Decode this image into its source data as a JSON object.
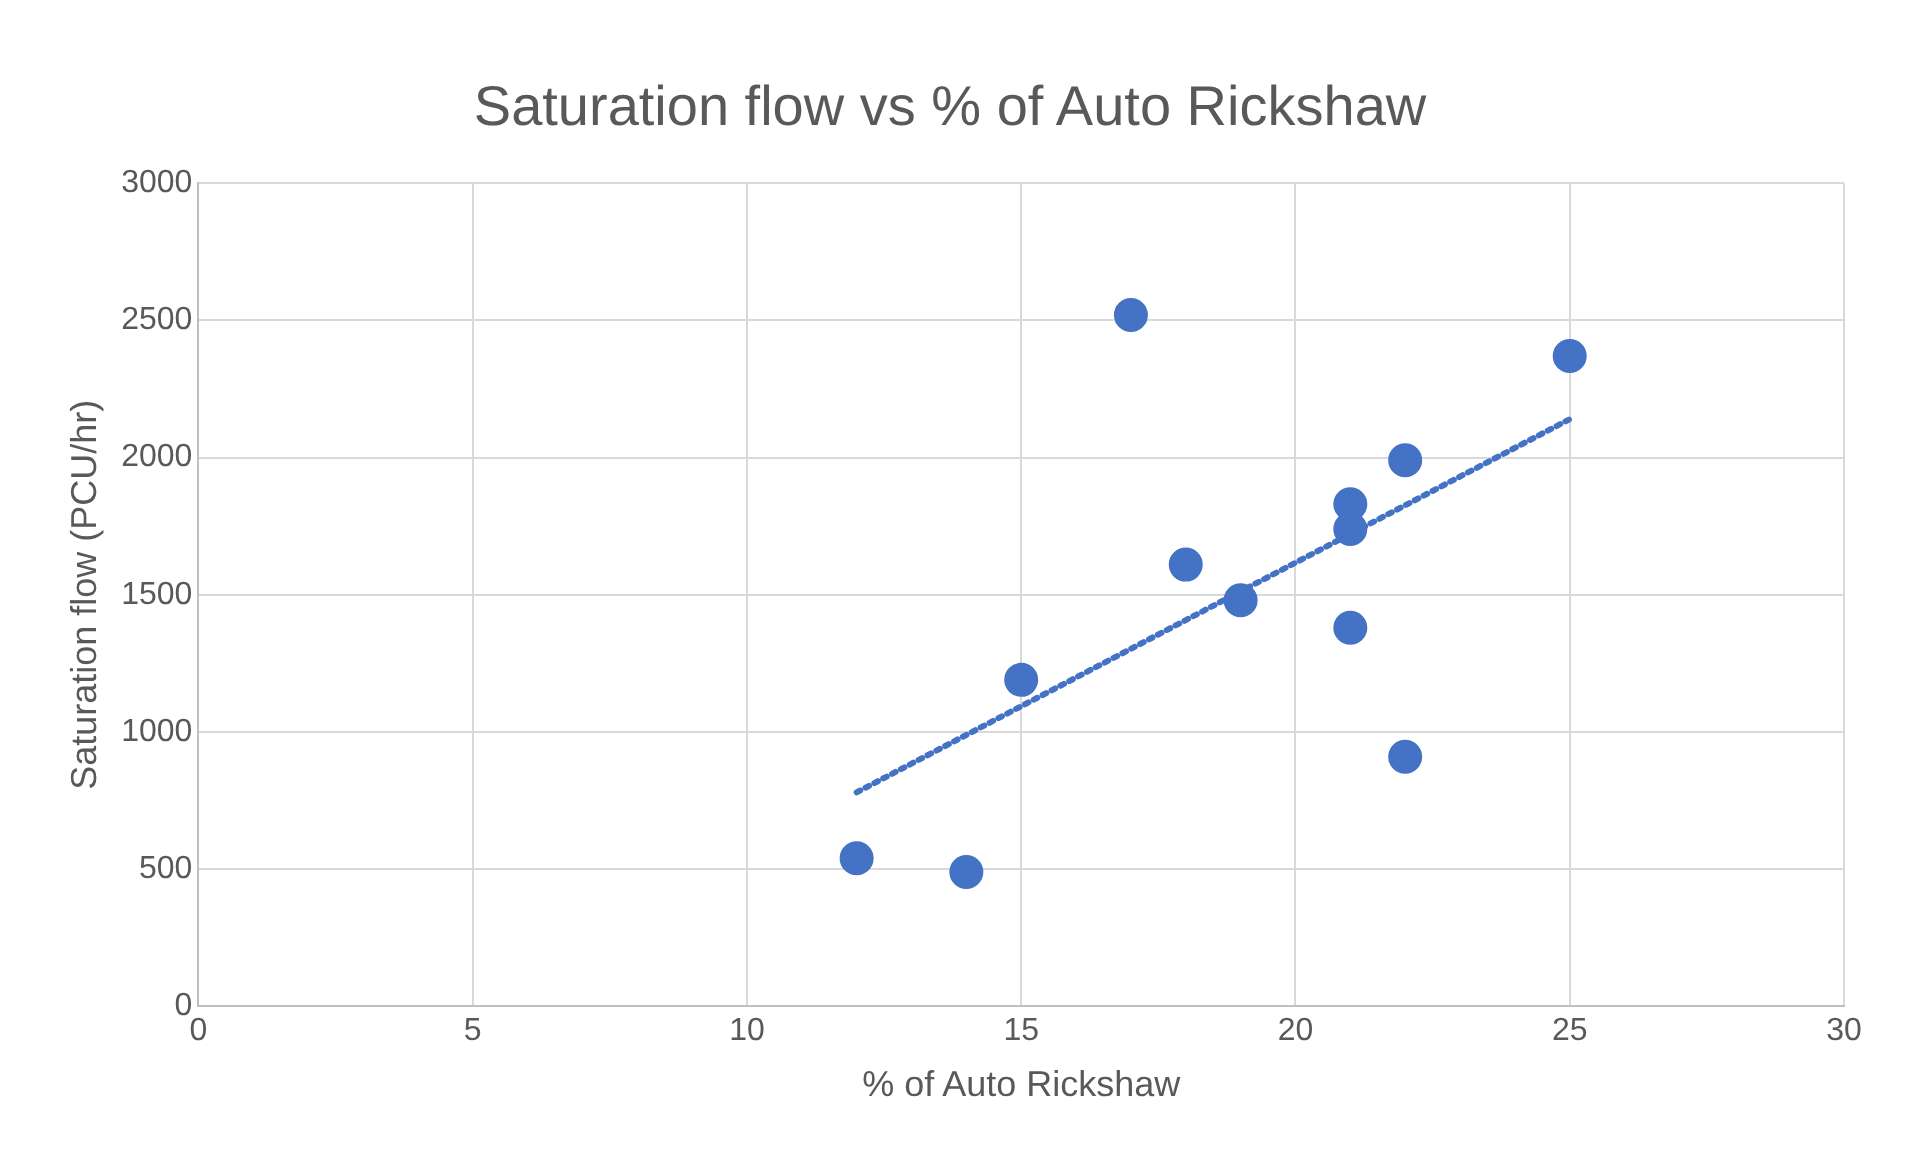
{
  "chart_data": {
    "type": "scatter",
    "title": "Saturation flow vs % of Auto Rickshaw",
    "xlabel": "% of Auto Rickshaw",
    "ylabel": "Saturation flow (PCU/hr)",
    "xlim": [
      0,
      30
    ],
    "xticks": [
      0,
      5,
      10,
      15,
      20,
      25,
      30
    ],
    "ylim": [
      0,
      3000
    ],
    "yticks": [
      0,
      500,
      1000,
      1500,
      2000,
      2500,
      3000
    ],
    "grid": true,
    "legend": false,
    "marker": "circle",
    "series": [
      {
        "type": "scatter",
        "color": "#4472c4",
        "x": [
          12,
          14,
          15,
          17,
          18,
          19,
          21,
          21,
          21,
          22,
          22,
          25
        ],
        "values": [
          540,
          490,
          1190,
          2520,
          1610,
          1480,
          1830,
          1740,
          1380,
          1990,
          910,
          2370
        ]
      },
      {
        "type": "line",
        "color": "#4472c4",
        "line_style": "dotted",
        "marker": "none",
        "x": [
          12,
          25
        ],
        "values": [
          780,
          2140
        ]
      }
    ]
  }
}
